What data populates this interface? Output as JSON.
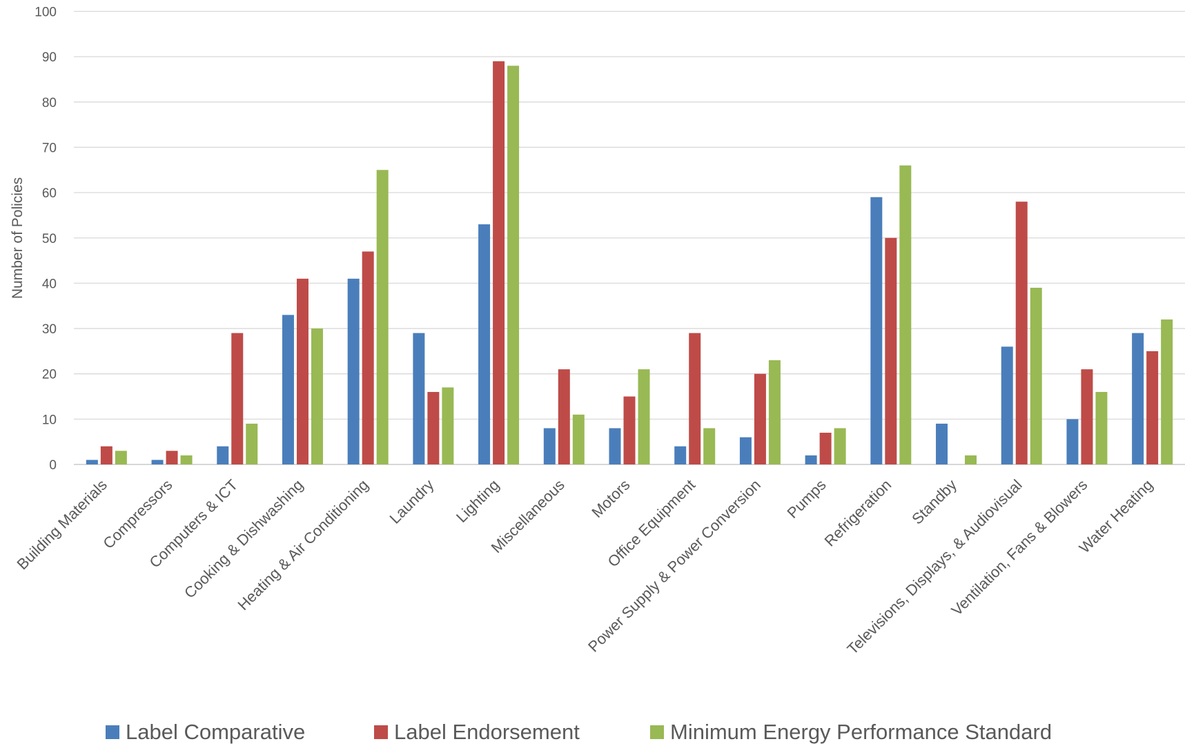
{
  "chart_data": {
    "type": "bar",
    "title": "",
    "xlabel": "",
    "ylabel": "Number of Policies",
    "ylim": [
      0,
      100
    ],
    "yticks": [
      0,
      10,
      20,
      30,
      40,
      50,
      60,
      70,
      80,
      90,
      100
    ],
    "grid": true,
    "legend_position": "bottom",
    "categories": [
      "Building Materials",
      "Compressors",
      "Computers & ICT",
      "Cooking & Dishwashing",
      "Heating & Air Conditioning",
      "Laundry",
      "Lighting",
      "Miscellaneous",
      "Motors",
      "Office Equipment",
      "Power Supply & Power Conversion",
      "Pumps",
      "Refrigeration",
      "Standby",
      "Televisions, Displays, & Audiovisual",
      "Ventilation, Fans & Blowers",
      "Water Heating"
    ],
    "series": [
      {
        "name": "Label Comparative",
        "color": "#4a7ebb",
        "values": [
          1,
          1,
          4,
          33,
          41,
          29,
          53,
          8,
          8,
          4,
          6,
          2,
          59,
          9,
          26,
          10,
          29
        ]
      },
      {
        "name": "Label Endorsement",
        "color": "#be4b48",
        "values": [
          4,
          3,
          29,
          41,
          47,
          16,
          89,
          21,
          15,
          29,
          20,
          7,
          50,
          0,
          58,
          21,
          25
        ]
      },
      {
        "name": "Minimum Energy Performance Standard",
        "color": "#98b954",
        "values": [
          3,
          2,
          9,
          30,
          65,
          17,
          88,
          11,
          21,
          8,
          23,
          8,
          66,
          2,
          39,
          16,
          32
        ]
      }
    ]
  }
}
